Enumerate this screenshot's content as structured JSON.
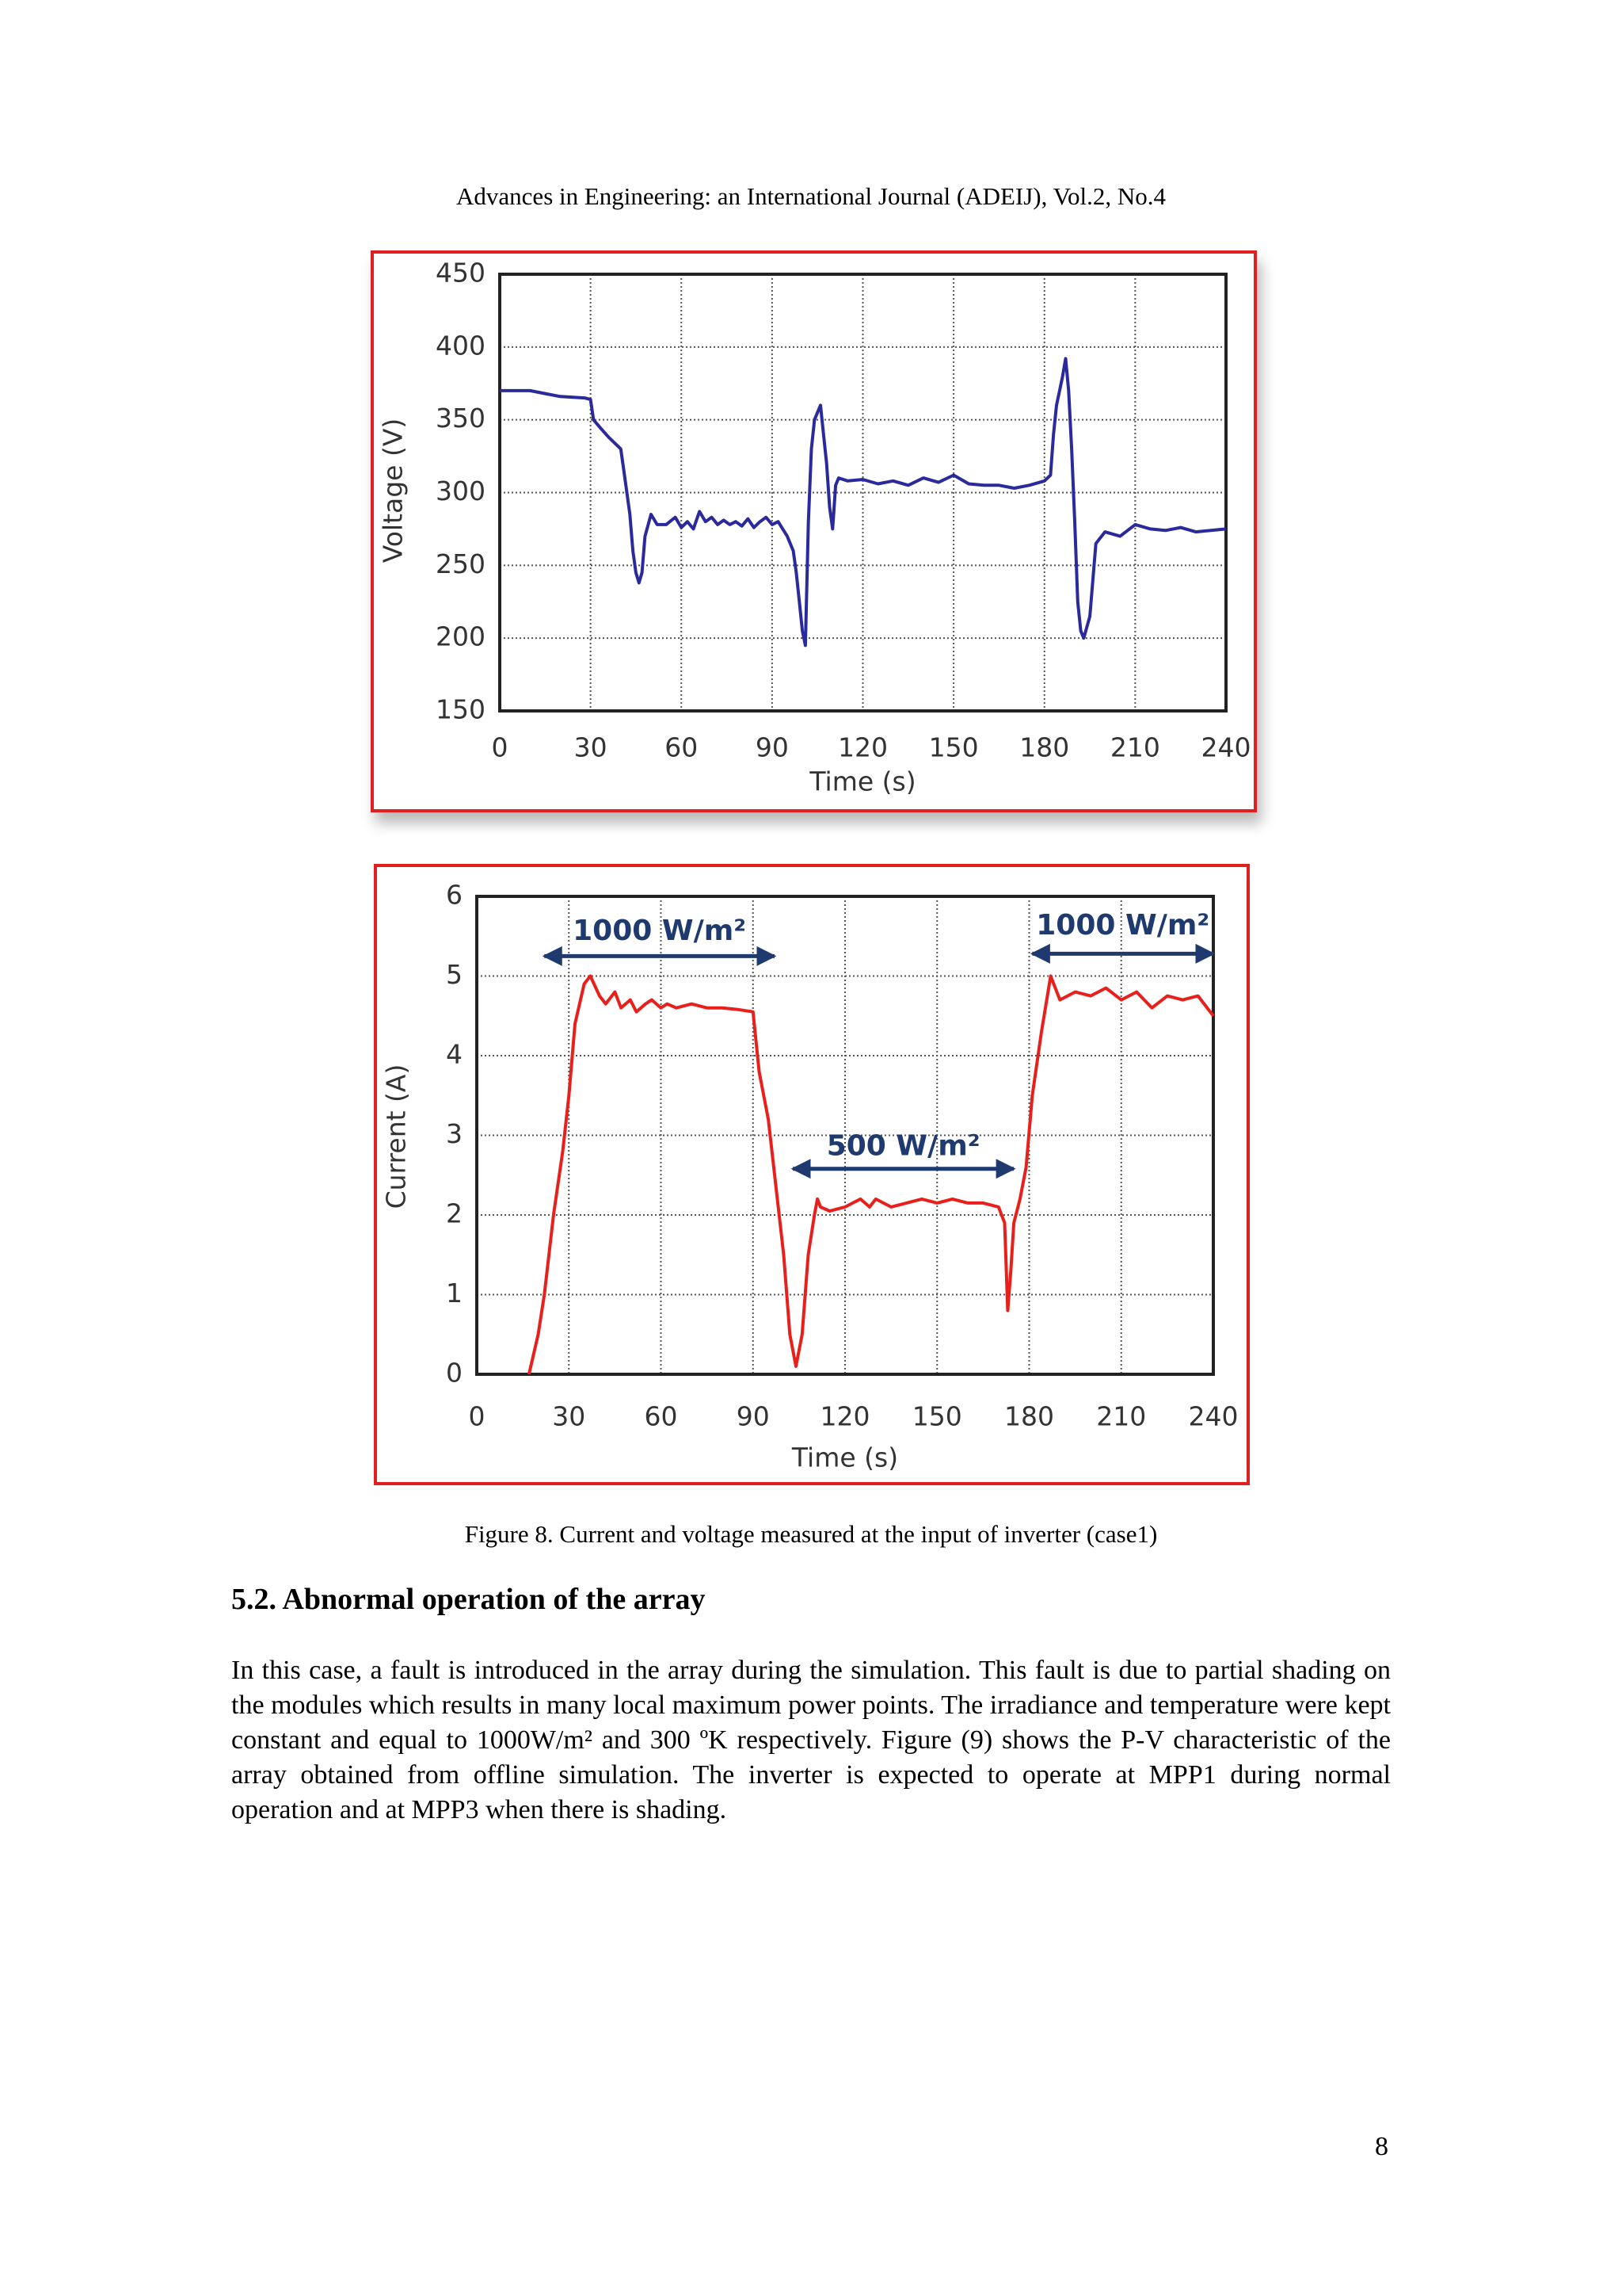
{
  "header": "Advances in Engineering: an International Journal (ADEIJ), Vol.2, No.4",
  "chart_data": [
    {
      "type": "line",
      "x_label": "Time (s)",
      "y_label": "Voltage (V)",
      "color": "#2a2a9c",
      "grid": true,
      "xlim": [
        0,
        240
      ],
      "xticks": [
        0,
        30,
        60,
        90,
        120,
        150,
        180,
        210,
        240
      ],
      "ylim": [
        150,
        450
      ],
      "yticks": [
        150,
        200,
        250,
        300,
        350,
        400,
        450
      ],
      "x": [
        0,
        10,
        15,
        20,
        28,
        30,
        31,
        33,
        36,
        40,
        41,
        42,
        43,
        44,
        45,
        46,
        47,
        48,
        50,
        52,
        55,
        58,
        60,
        62,
        64,
        66,
        68,
        70,
        72,
        74,
        76,
        78,
        80,
        82,
        84,
        86,
        88,
        90,
        92,
        95,
        97,
        98,
        99,
        100,
        101,
        102,
        103,
        104,
        106,
        107,
        108,
        109,
        110,
        111,
        112,
        115,
        120,
        125,
        130,
        135,
        140,
        145,
        150,
        155,
        160,
        165,
        170,
        175,
        180,
        182,
        183,
        184,
        185,
        186,
        187,
        188,
        189,
        190,
        191,
        192,
        193,
        195,
        197,
        200,
        205,
        210,
        215,
        220,
        225,
        230,
        235,
        240
      ],
      "values": [
        370,
        370,
        368,
        366,
        365,
        364,
        350,
        345,
        338,
        330,
        315,
        300,
        285,
        260,
        245,
        238,
        245,
        270,
        285,
        278,
        278,
        283,
        276,
        280,
        275,
        287,
        280,
        283,
        278,
        281,
        278,
        280,
        277,
        282,
        276,
        280,
        283,
        278,
        280,
        270,
        260,
        245,
        225,
        205,
        195,
        280,
        330,
        350,
        360,
        340,
        320,
        290,
        275,
        305,
        310,
        308,
        309,
        306,
        308,
        305,
        310,
        307,
        312,
        306,
        305,
        305,
        303,
        305,
        308,
        312,
        340,
        360,
        370,
        380,
        392,
        370,
        330,
        280,
        225,
        205,
        200,
        215,
        265,
        273,
        270,
        278,
        275,
        274,
        276,
        273,
        274,
        275
      ]
    },
    {
      "type": "line",
      "x_label": "Time (s)",
      "y_label": "Current (A)",
      "color": "#e8201c",
      "grid": true,
      "xlim": [
        0,
        240
      ],
      "xticks": [
        0,
        30,
        60,
        90,
        120,
        150,
        180,
        210,
        240
      ],
      "ylim": [
        0,
        6
      ],
      "yticks": [
        0,
        1,
        2,
        3,
        4,
        5,
        6
      ],
      "annotations": [
        "1000 W/m²",
        "1000 W/m²",
        "500 W/m²"
      ],
      "x": [
        17,
        20,
        22,
        25,
        28,
        30,
        32,
        35,
        37,
        40,
        42,
        45,
        47,
        50,
        52,
        55,
        57,
        60,
        62,
        65,
        70,
        75,
        80,
        85,
        90,
        92,
        95,
        100,
        102,
        104,
        106,
        108,
        110,
        111,
        112,
        115,
        120,
        125,
        128,
        130,
        135,
        140,
        145,
        150,
        155,
        160,
        165,
        170,
        172,
        173,
        174,
        175,
        177,
        179,
        181,
        184,
        187,
        190,
        195,
        200,
        205,
        210,
        215,
        220,
        225,
        230,
        235,
        240
      ],
      "values": [
        0,
        0.5,
        1.0,
        2,
        2.8,
        3.5,
        4.4,
        4.9,
        5.0,
        4.75,
        4.65,
        4.8,
        4.6,
        4.7,
        4.55,
        4.65,
        4.7,
        4.6,
        4.65,
        4.6,
        4.65,
        4.6,
        4.6,
        4.58,
        4.55,
        3.8,
        3.2,
        1.5,
        0.5,
        0.1,
        0.5,
        1.5,
        2.0,
        2.2,
        2.1,
        2.05,
        2.1,
        2.2,
        2.1,
        2.2,
        2.1,
        2.15,
        2.2,
        2.15,
        2.2,
        2.15,
        2.15,
        2.1,
        1.9,
        0.8,
        1.3,
        1.9,
        2.2,
        2.6,
        3.5,
        4.3,
        5.0,
        4.7,
        4.8,
        4.75,
        4.85,
        4.7,
        4.8,
        4.6,
        4.75,
        4.7,
        4.75,
        4.5
      ]
    }
  ],
  "figure_caption": "Figure  8. Current and voltage measured at the input of inverter (case1)",
  "section_title": "5.2.  Abnormal operation of the array",
  "paragraph": "In this case, a fault is introduced in the array during the simulation. This fault is due to partial shading on the modules which results in many local maximum power points. The irradiance and temperature were kept constant and equal to 1000W/m² and 300 ºK respectively. Figure (9) shows the P-V characteristic of the array obtained from offline simulation. The inverter is expected to operate at MPP1 during normal operation and at MPP3 when there is shading.",
  "page_number": "8"
}
